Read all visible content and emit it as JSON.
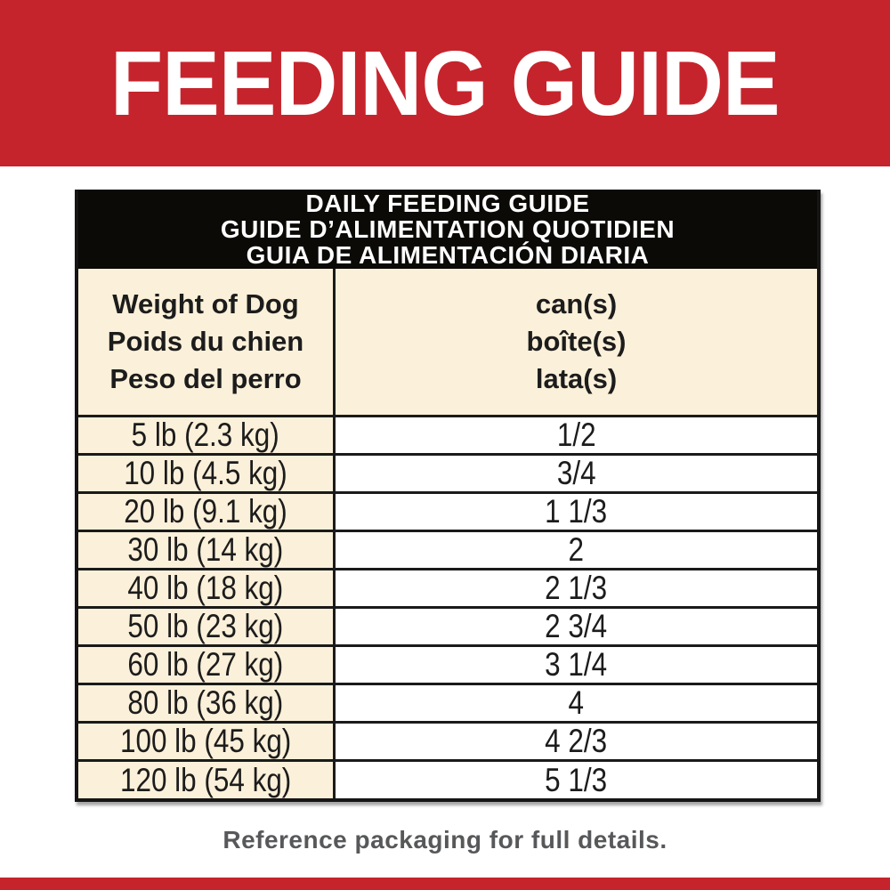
{
  "banner": {
    "title": "FEEDING GUIDE"
  },
  "table": {
    "title_lines": [
      "DAILY FEEDING GUIDE",
      "GUIDE D’ALIMENTATION QUOTIDIEN",
      "GUIA DE ALIMENTACIÓN DIARIA"
    ],
    "columns": [
      {
        "header_lines": [
          "Weight of Dog",
          "Poids du chien",
          "Peso del perro"
        ]
      },
      {
        "header_lines": [
          "can(s)",
          "boîte(s)",
          "lata(s)"
        ]
      }
    ],
    "rows": [
      {
        "weight": "5 lb (2.3 kg)",
        "cans": "1/2"
      },
      {
        "weight": "10 lb (4.5 kg)",
        "cans": "3/4"
      },
      {
        "weight": "20 lb (9.1 kg)",
        "cans": "1 1/3"
      },
      {
        "weight": "30 lb (14 kg)",
        "cans": "2"
      },
      {
        "weight": "40 lb (18 kg)",
        "cans": "2 1/3"
      },
      {
        "weight": "50 lb (23 kg)",
        "cans": "2 3/4"
      },
      {
        "weight": "60 lb (27 kg)",
        "cans": "3 1/4"
      },
      {
        "weight": "80 lb (36 kg)",
        "cans": "4"
      },
      {
        "weight": "100 lb (45 kg)",
        "cans": "4 2/3"
      },
      {
        "weight": "120 lb (54 kg)",
        "cans": "5 1/3"
      }
    ]
  },
  "footer": {
    "note": "Reference packaging for full details."
  },
  "colors": {
    "brand_red": "#c6242c",
    "cream": "#fbf0d9",
    "header_black": "#0b0a07",
    "border_black": "#1a1a1a",
    "footnote_gray": "#57585a",
    "text_white": "#ffffff"
  },
  "chart_data": {
    "type": "table",
    "title": "DAILY FEEDING GUIDE",
    "columns": [
      "Weight of Dog",
      "can(s)"
    ],
    "rows": [
      [
        "5 lb (2.3 kg)",
        "1/2"
      ],
      [
        "10 lb (4.5 kg)",
        "3/4"
      ],
      [
        "20 lb (9.1 kg)",
        "1 1/3"
      ],
      [
        "30 lb (14 kg)",
        "2"
      ],
      [
        "40 lb (18 kg)",
        "2 1/3"
      ],
      [
        "50 lb (23 kg)",
        "2 3/4"
      ],
      [
        "60 lb (27 kg)",
        "3 1/4"
      ],
      [
        "80 lb (36 kg)",
        "4"
      ],
      [
        "100 lb (45 kg)",
        "4 2/3"
      ],
      [
        "120 lb (54 kg)",
        "5 1/3"
      ]
    ]
  }
}
